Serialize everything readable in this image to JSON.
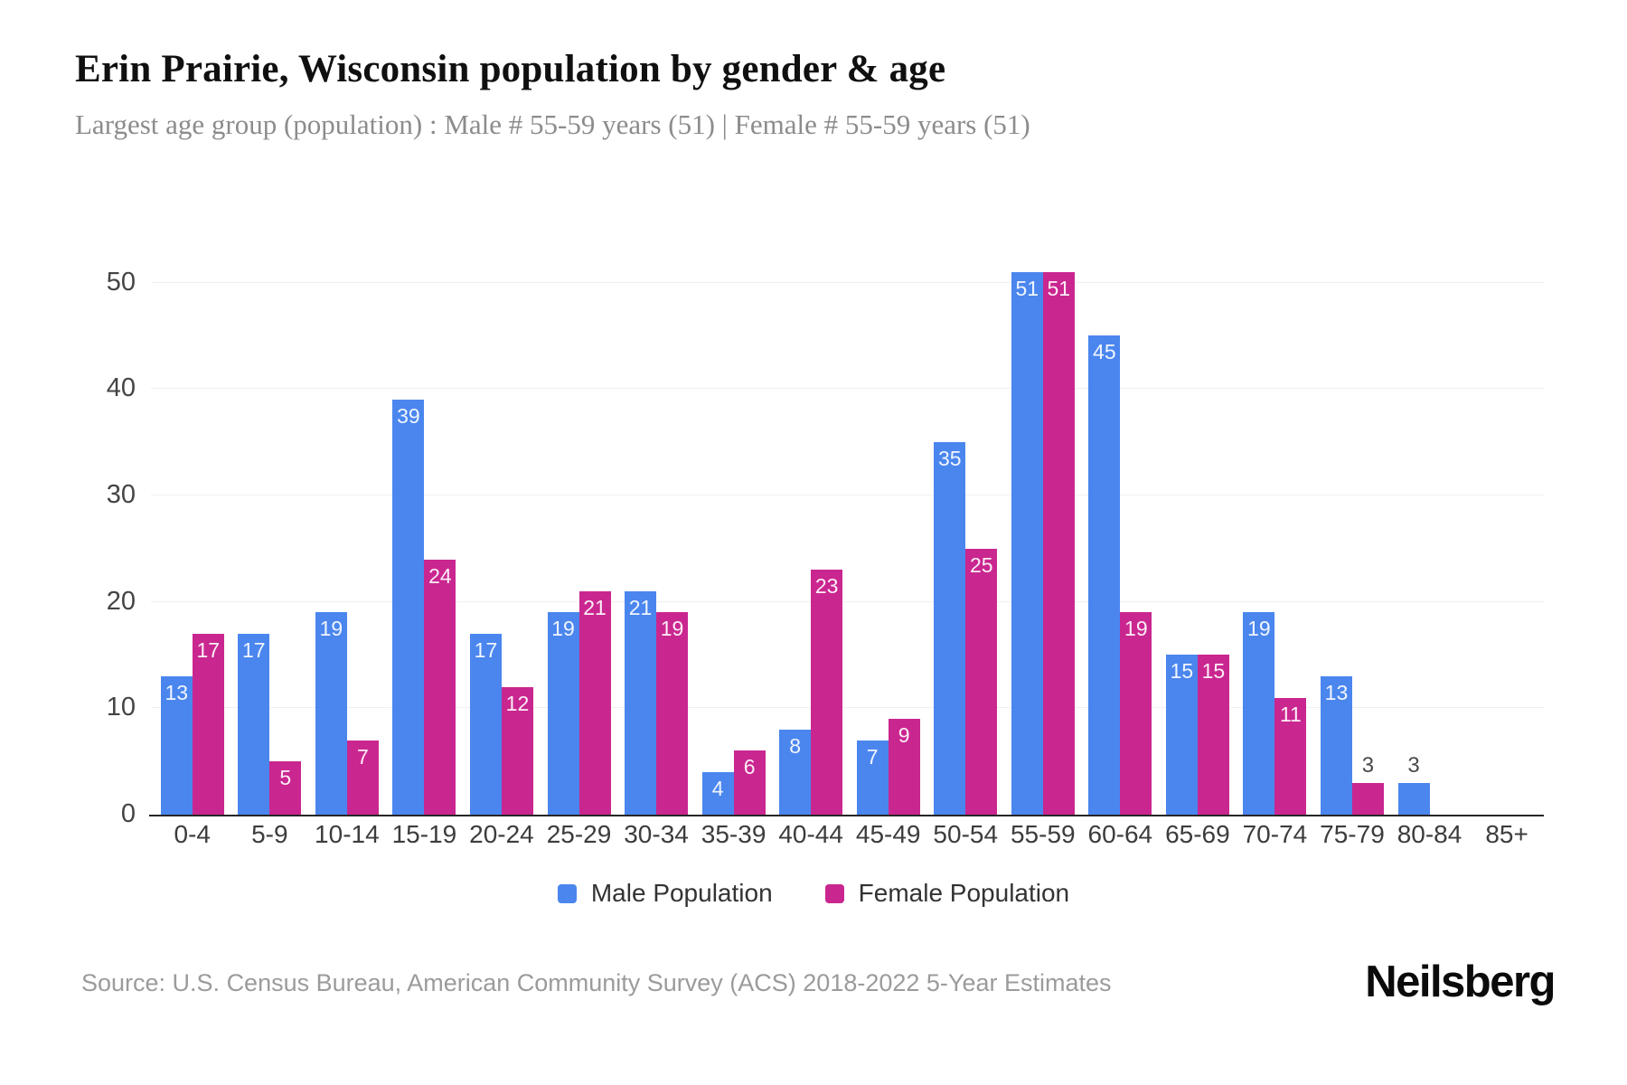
{
  "header": {
    "title": "Erin Prairie, Wisconsin population by gender & age",
    "subtitle": "Largest age group (population) : Male # 55-59 years (51) | Female # 55-59 years (51)"
  },
  "footer": {
    "source": "Source: U.S. Census Bureau, American Community Survey (ACS) 2018-2022 5-Year Estimates",
    "brand": "Neilsberg"
  },
  "colors": {
    "male": "#4a86ee",
    "female": "#ca2690",
    "grid": "#f0f0f0",
    "axis": "#262626",
    "label_inside": "#ffffff",
    "label_outside": "#4a4a4a"
  },
  "legend": [
    {
      "label": "Male Population",
      "color_key": "male"
    },
    {
      "label": "Female Population",
      "color_key": "female"
    }
  ],
  "chart_data": {
    "type": "bar",
    "categories": [
      "0-4",
      "5-9",
      "10-14",
      "15-19",
      "20-24",
      "25-29",
      "30-34",
      "35-39",
      "40-44",
      "45-49",
      "50-54",
      "55-59",
      "60-64",
      "65-69",
      "70-74",
      "75-79",
      "80-84",
      "85+"
    ],
    "series": [
      {
        "name": "Male Population",
        "color_key": "male",
        "values": [
          13,
          17,
          19,
          39,
          17,
          19,
          21,
          4,
          8,
          7,
          35,
          51,
          45,
          15,
          19,
          13,
          3,
          0
        ]
      },
      {
        "name": "Female Population",
        "color_key": "female",
        "values": [
          17,
          5,
          7,
          24,
          12,
          21,
          19,
          6,
          23,
          9,
          25,
          51,
          19,
          15,
          11,
          3,
          0,
          0
        ]
      }
    ],
    "title": "Erin Prairie, Wisconsin population by gender & age",
    "xlabel": "",
    "ylabel": "",
    "yticks": [
      0,
      10,
      20,
      30,
      40,
      50
    ],
    "ylim": [
      0,
      52
    ],
    "grid": true,
    "legend_position": "bottom",
    "inside_label_min_value": 4
  }
}
